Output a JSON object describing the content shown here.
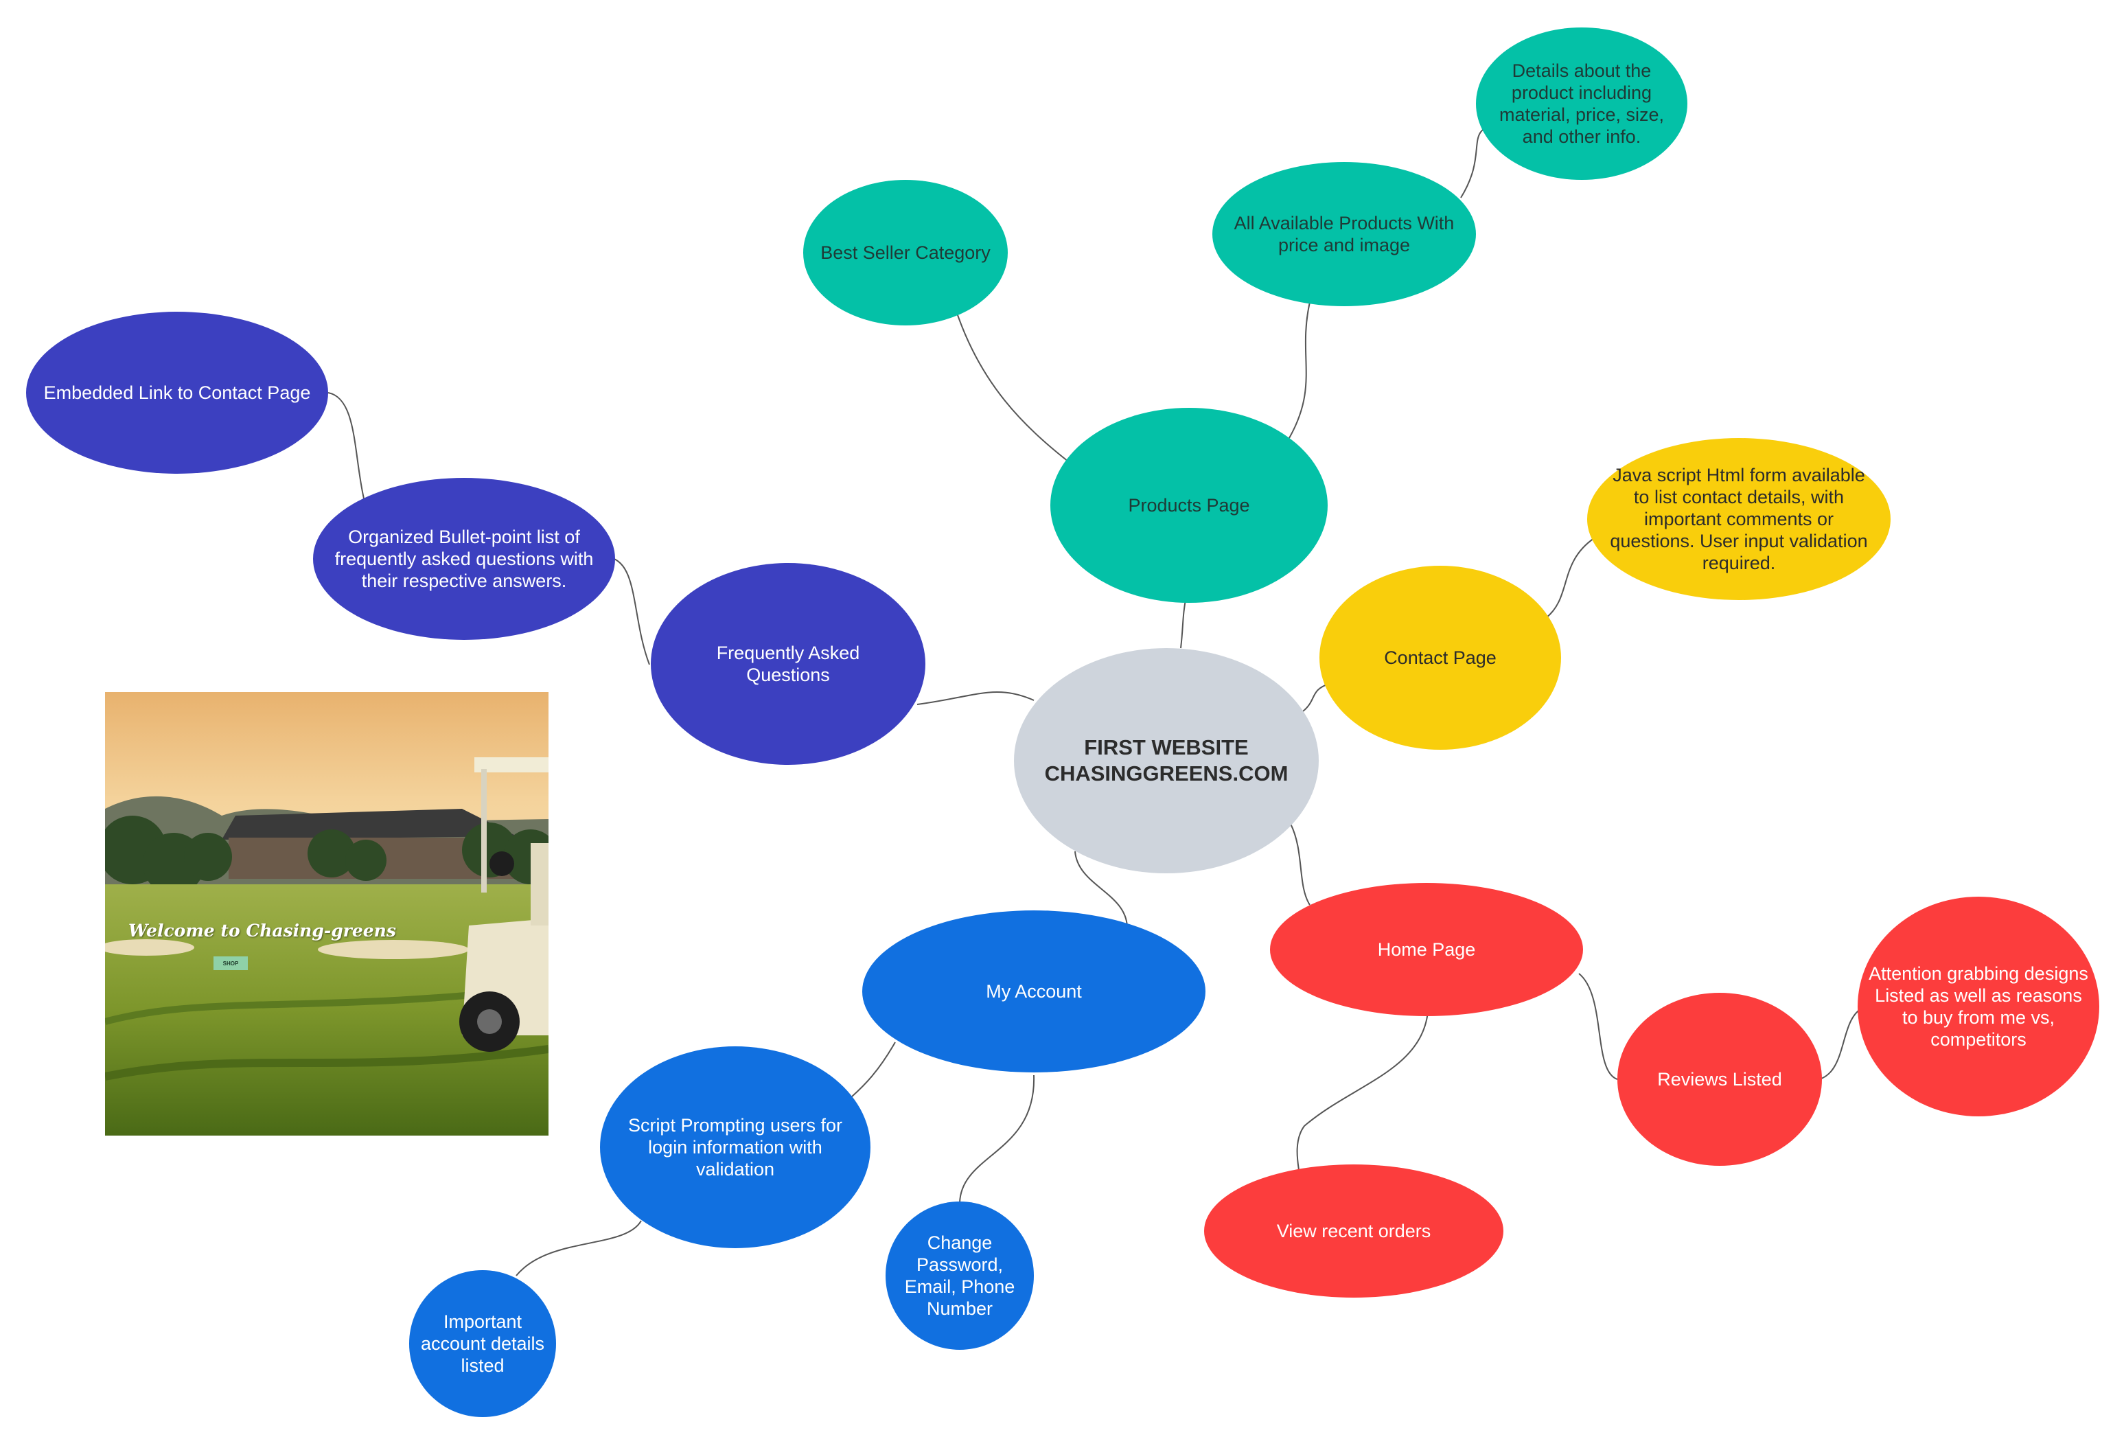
{
  "nodes": {
    "central": "FIRST WEBSITE\nCHASINGGREENS.COM",
    "products_page": "Products Page",
    "best_seller": "Best Seller Category",
    "all_products": "All Available Products With price and image",
    "product_details": "Details about the product including material, price, size, and other info.",
    "contact_page": "Contact Page",
    "contact_form": "Java script Html form available to list contact details, with important comments or questions. User input validation required.",
    "faq": "Frequently Asked Questions",
    "faq_list": "Organized Bullet-point list of frequently asked questions with their respective answers.",
    "embedded_link": "Embedded Link to Contact Page",
    "home_page": "Home Page",
    "reviews": "Reviews Listed",
    "attention_designs": "Attention grabbing designs Listed as well as reasons to buy from me vs, competitors",
    "recent_orders": "View recent orders",
    "my_account": "My Account",
    "login_script": "Script Prompting users for login information with validation",
    "change_password": "Change Password, Email, Phone Number",
    "account_details": "Important account details listed"
  },
  "image": {
    "welcome_text": "Welcome to Chasing-greens",
    "shop_button": "SHOP"
  },
  "colors": {
    "teal": "#04c1a7",
    "indigo": "#3c40c0",
    "yellow": "#f9ce0c",
    "red": "#fc3d3d",
    "blue": "#1170e0",
    "gray": "#ced4dc",
    "connector": "#555555"
  }
}
